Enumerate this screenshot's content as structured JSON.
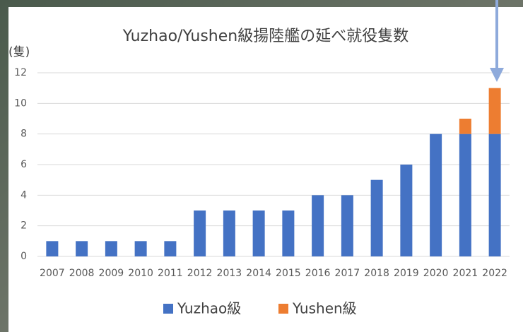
{
  "chart_data": {
    "type": "stacked_bar",
    "title": "Yuzhao/Yushen級揚陸艦の延べ就役隻数",
    "y_label": "(隻)",
    "categories": [
      "2007",
      "2008",
      "2009",
      "2010",
      "2011",
      "2012",
      "2013",
      "2014",
      "2015",
      "2016",
      "2017",
      "2018",
      "2019",
      "2020",
      "2021",
      "2022"
    ],
    "series": [
      {
        "name": "Yuzhao級",
        "color": "#4472c4",
        "values": [
          1,
          1,
          1,
          1,
          1,
          3,
          3,
          3,
          3,
          4,
          4,
          5,
          6,
          8,
          8,
          8
        ]
      },
      {
        "name": "Yushen級",
        "color": "#ed7d31",
        "values": [
          0,
          0,
          0,
          0,
          0,
          0,
          0,
          0,
          0,
          0,
          0,
          0,
          0,
          0,
          1,
          3
        ]
      }
    ],
    "ylim": [
      0,
      12
    ],
    "yticks": [
      0,
      2,
      4,
      6,
      8,
      10,
      12
    ],
    "grid": true,
    "legend": "bottom"
  }
}
